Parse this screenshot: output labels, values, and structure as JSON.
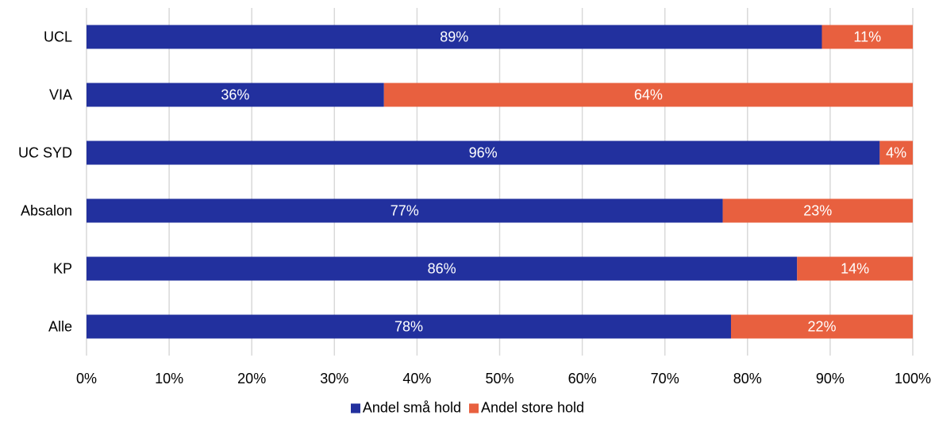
{
  "chart_data": {
    "type": "bar",
    "orientation": "horizontal",
    "stacked": true,
    "categories": [
      "UCL",
      "VIA",
      "UC SYD",
      "Absalon",
      "KP",
      "Alle"
    ],
    "series": [
      {
        "name": "Andel små hold",
        "values": [
          89,
          36,
          96,
          77,
          86,
          78
        ],
        "labels": [
          "89%",
          "36%",
          "96%",
          "77%",
          "86%",
          "78%"
        ],
        "color": "#22309e"
      },
      {
        "name": "Andel store hold",
        "values": [
          11,
          64,
          4,
          23,
          14,
          22
        ],
        "labels": [
          "11%",
          "64%",
          "4%",
          "23%",
          "14%",
          "22%"
        ],
        "color": "#e8603f"
      }
    ],
    "xlim": [
      0,
      100
    ],
    "xticks": [
      "0%",
      "10%",
      "20%",
      "30%",
      "40%",
      "50%",
      "60%",
      "70%",
      "80%",
      "90%",
      "100%"
    ],
    "grid": true,
    "legend_position": "bottom"
  }
}
